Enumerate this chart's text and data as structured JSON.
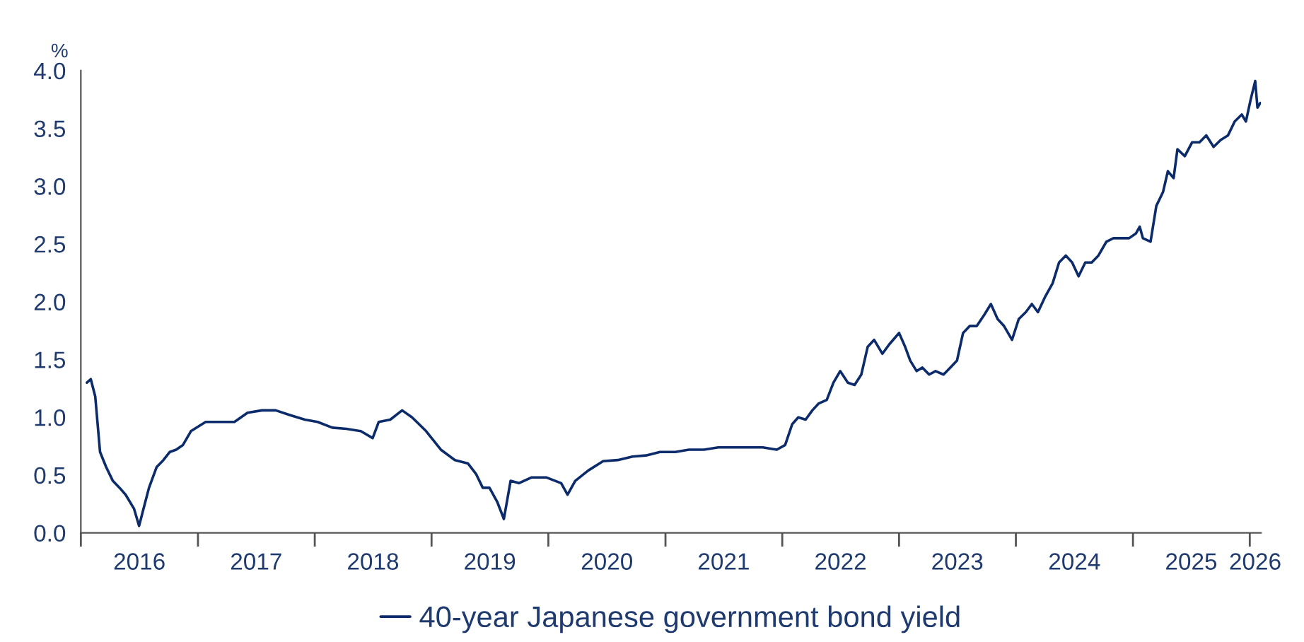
{
  "chart_data": {
    "type": "line",
    "ylabel": "%",
    "legend": "bottom",
    "grid": false,
    "marker": "none",
    "line_style": "solid",
    "xlim": [
      "2016-01-01",
      "2026-02-05"
    ],
    "xticks": [
      {
        "value": "2016-01-01",
        "label": null
      },
      {
        "value": "2016-07-02",
        "label": "2016"
      },
      {
        "value": "2017-01-01",
        "label": null
      },
      {
        "value": "2017-07-02",
        "label": "2017"
      },
      {
        "value": "2018-01-01",
        "label": null
      },
      {
        "value": "2018-07-02",
        "label": "2018"
      },
      {
        "value": "2019-01-01",
        "label": null
      },
      {
        "value": "2019-07-02",
        "label": "2019"
      },
      {
        "value": "2020-01-01",
        "label": null
      },
      {
        "value": "2020-07-02",
        "label": "2020"
      },
      {
        "value": "2021-01-01",
        "label": null
      },
      {
        "value": "2021-07-02",
        "label": "2021"
      },
      {
        "value": "2022-01-01",
        "label": null
      },
      {
        "value": "2022-07-02",
        "label": "2022"
      },
      {
        "value": "2023-01-01",
        "label": null
      },
      {
        "value": "2023-07-02",
        "label": "2023"
      },
      {
        "value": "2024-01-01",
        "label": null
      },
      {
        "value": "2024-07-02",
        "label": "2024"
      },
      {
        "value": "2025-01-01",
        "label": null
      },
      {
        "value": "2025-07-02",
        "label": "2025"
      },
      {
        "value": "2026-01-01",
        "label": null
      },
      {
        "value": "2026-01-18",
        "label": "2026"
      }
    ],
    "ylim": [
      0,
      4.0
    ],
    "yticks": [
      {
        "value": 0,
        "label": "0.0"
      },
      {
        "value": 0.5,
        "label": "0.5"
      },
      {
        "value": 1.0,
        "label": "1.0"
      },
      {
        "value": 1.5,
        "label": "1.5"
      },
      {
        "value": 2.0,
        "label": "2.0"
      },
      {
        "value": 2.5,
        "label": "2.5"
      },
      {
        "value": 3.0,
        "label": "3.0"
      },
      {
        "value": 3.5,
        "label": "3.5"
      },
      {
        "value": 4.0,
        "label": "4.0"
      }
    ],
    "x": [
      "2016-01-20",
      "2016-02-01",
      "2016-02-15",
      "2016-03-01",
      "2016-03-20",
      "2016-04-10",
      "2016-05-01",
      "2016-05-20",
      "2016-06-15",
      "2016-07-01",
      "2016-07-15",
      "2016-08-01",
      "2016-08-25",
      "2016-09-15",
      "2016-10-05",
      "2016-10-25",
      "2016-11-15",
      "2016-12-10",
      "2017-01-25",
      "2017-03-10",
      "2017-04-25",
      "2017-06-05",
      "2017-07-20",
      "2017-09-01",
      "2017-10-15",
      "2017-12-01",
      "2018-01-10",
      "2018-02-25",
      "2018-04-10",
      "2018-05-25",
      "2018-07-01",
      "2018-07-20",
      "2018-08-25",
      "2018-10-01",
      "2018-11-01",
      "2018-12-15",
      "2019-01-30",
      "2019-03-15",
      "2019-04-25",
      "2019-05-20",
      "2019-06-10",
      "2019-07-01",
      "2019-07-25",
      "2019-08-15",
      "2019-09-05",
      "2019-10-01",
      "2019-11-10",
      "2019-12-25",
      "2020-02-10",
      "2020-03-01",
      "2020-03-25",
      "2020-05-05",
      "2020-06-20",
      "2020-08-05",
      "2020-09-20",
      "2020-11-01",
      "2020-12-15",
      "2021-02-01",
      "2021-03-15",
      "2021-05-01",
      "2021-06-15",
      "2021-08-01",
      "2021-09-15",
      "2021-11-01",
      "2021-12-15",
      "2022-01-10",
      "2022-02-01",
      "2022-02-20",
      "2022-03-15",
      "2022-04-05",
      "2022-04-25",
      "2022-05-20",
      "2022-06-10",
      "2022-07-01",
      "2022-07-25",
      "2022-08-15",
      "2022-09-05",
      "2022-09-25",
      "2022-10-15",
      "2022-11-10",
      "2022-12-01",
      "2023-01-01",
      "2023-01-20",
      "2023-02-05",
      "2023-02-25",
      "2023-03-15",
      "2023-04-05",
      "2023-04-25",
      "2023-05-20",
      "2023-06-10",
      "2023-07-01",
      "2023-07-20",
      "2023-08-10",
      "2023-09-01",
      "2023-09-25",
      "2023-10-15",
      "2023-11-05",
      "2023-11-25",
      "2023-12-20",
      "2024-01-10",
      "2024-02-01",
      "2024-02-20",
      "2024-03-10",
      "2024-04-01",
      "2024-04-25",
      "2024-05-15",
      "2024-06-05",
      "2024-06-25",
      "2024-07-15",
      "2024-08-05",
      "2024-08-25",
      "2024-09-15",
      "2024-10-10",
      "2024-11-01",
      "2024-11-20",
      "2024-12-20",
      "2025-01-10",
      "2025-01-22",
      "2025-02-01",
      "2025-02-25",
      "2025-03-15",
      "2025-04-05",
      "2025-04-20",
      "2025-05-08",
      "2025-05-20",
      "2025-06-12",
      "2025-07-05",
      "2025-07-28",
      "2025-08-18",
      "2025-09-10",
      "2025-10-02",
      "2025-10-25",
      "2025-11-15",
      "2025-12-07",
      "2025-12-20",
      "2026-01-03",
      "2026-01-18",
      "2026-01-25",
      "2026-02-03"
    ],
    "series": [
      {
        "name": "40-year Japanese government bond yield",
        "color": "#0c2b6b",
        "values": [
          1.3,
          1.33,
          1.18,
          0.7,
          0.57,
          0.45,
          0.39,
          0.33,
          0.21,
          0.06,
          0.21,
          0.39,
          0.57,
          0.63,
          0.7,
          0.72,
          0.76,
          0.88,
          0.96,
          0.96,
          0.96,
          1.04,
          1.06,
          1.06,
          1.02,
          0.98,
          0.96,
          0.91,
          0.9,
          0.88,
          0.82,
          0.96,
          0.98,
          1.06,
          1.0,
          0.88,
          0.72,
          0.63,
          0.6,
          0.51,
          0.39,
          0.39,
          0.27,
          0.12,
          0.45,
          0.43,
          0.48,
          0.48,
          0.43,
          0.33,
          0.45,
          0.54,
          0.62,
          0.63,
          0.66,
          0.67,
          0.7,
          0.7,
          0.72,
          0.72,
          0.74,
          0.74,
          0.74,
          0.74,
          0.72,
          0.76,
          0.94,
          1.0,
          0.98,
          1.06,
          1.12,
          1.15,
          1.3,
          1.4,
          1.3,
          1.28,
          1.37,
          1.61,
          1.67,
          1.55,
          1.63,
          1.73,
          1.61,
          1.49,
          1.4,
          1.43,
          1.37,
          1.4,
          1.37,
          1.43,
          1.49,
          1.73,
          1.79,
          1.79,
          1.89,
          1.98,
          1.85,
          1.79,
          1.67,
          1.85,
          1.91,
          1.98,
          1.91,
          2.04,
          2.16,
          2.34,
          2.4,
          2.34,
          2.22,
          2.34,
          2.34,
          2.4,
          2.52,
          2.55,
          2.55,
          2.55,
          2.59,
          2.65,
          2.55,
          2.52,
          2.83,
          2.95,
          3.13,
          3.07,
          3.32,
          3.26,
          3.38,
          3.38,
          3.44,
          3.34,
          3.4,
          3.44,
          3.56,
          3.62,
          3.56,
          3.74,
          3.91,
          3.68,
          3.72
        ]
      }
    ]
  }
}
